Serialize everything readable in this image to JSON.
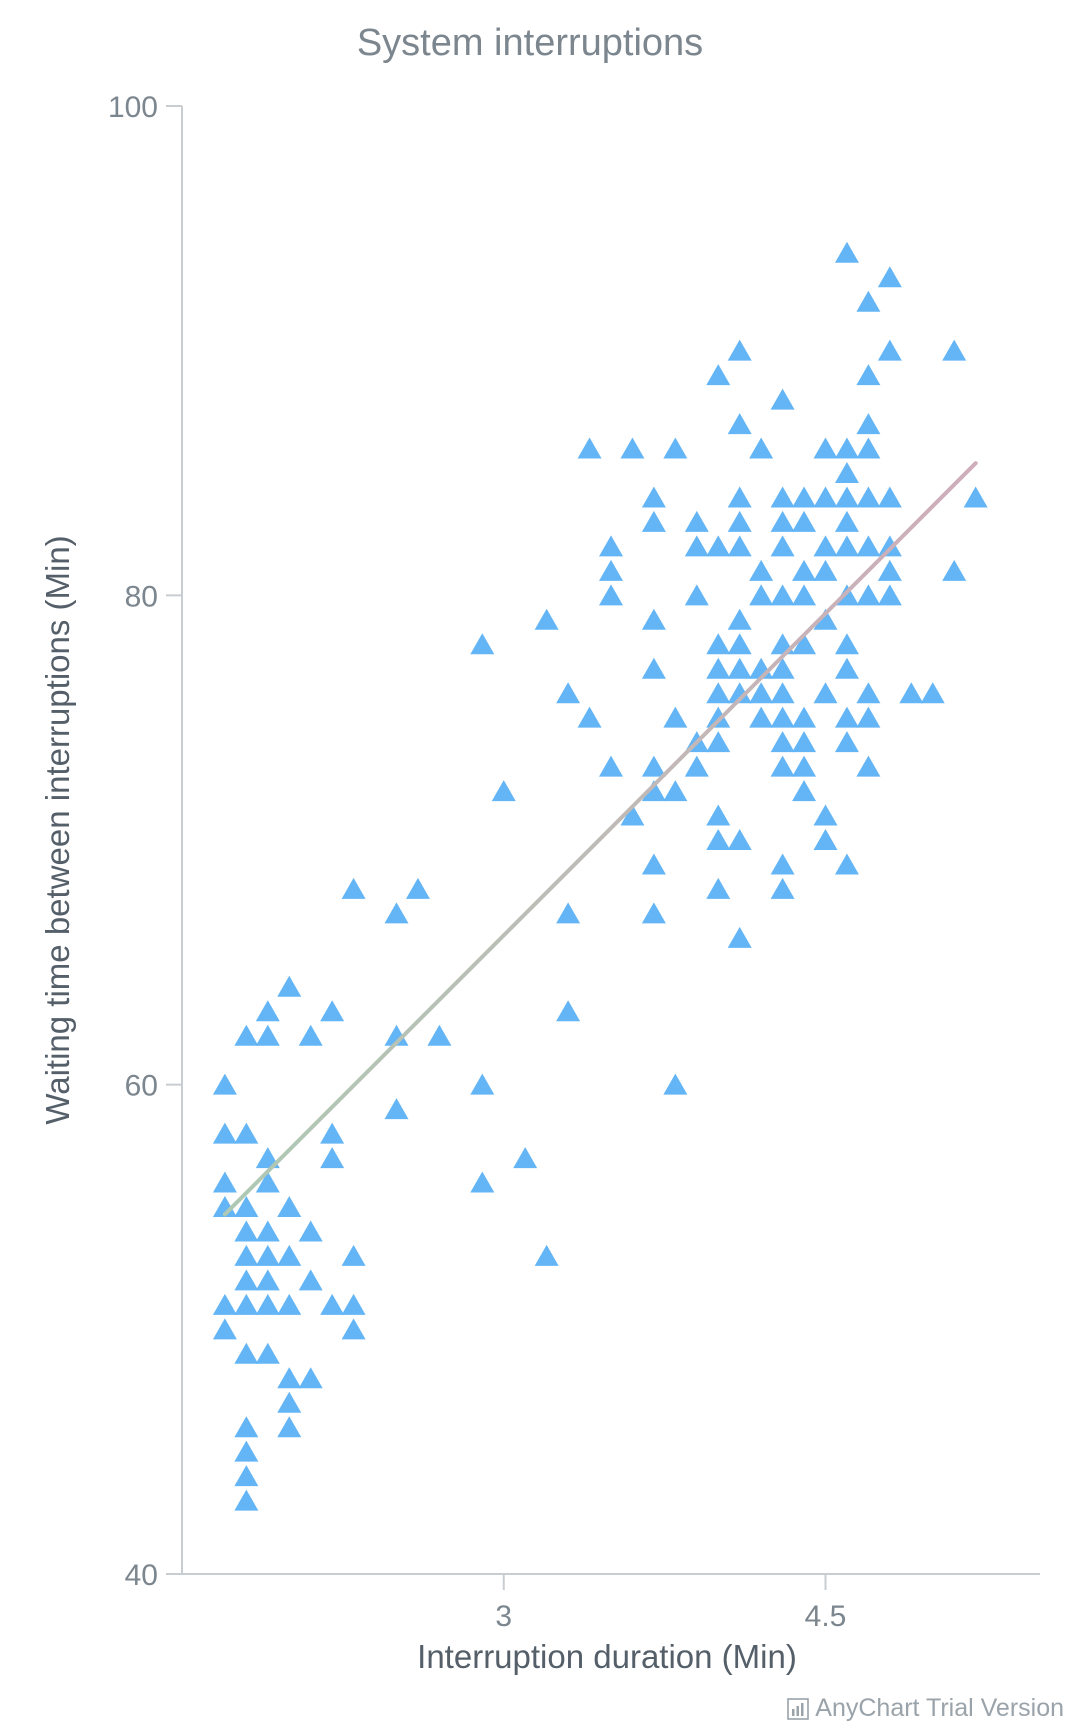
{
  "chart_data": {
    "type": "scatter",
    "title": "System interruptions",
    "xlabel": "Interruption duration (Min)",
    "ylabel": "Waiting time between interruptions (Min)",
    "xlim": [
      1.5,
      5.5
    ],
    "ylim": [
      40,
      100
    ],
    "x_ticks": [
      {
        "value": 3,
        "label": "3"
      },
      {
        "value": 4.5,
        "label": "4.5"
      }
    ],
    "y_ticks": [
      {
        "value": 40,
        "label": "40"
      },
      {
        "value": 60,
        "label": "60"
      },
      {
        "value": 80,
        "label": "80"
      },
      {
        "value": 100,
        "label": "100"
      }
    ],
    "series": [
      {
        "marker": "triangle-up",
        "color": "#64b5f6",
        "points": [
          [
            1.7,
            60
          ],
          [
            1.7,
            58
          ],
          [
            1.7,
            56
          ],
          [
            1.7,
            55
          ],
          [
            1.7,
            51
          ],
          [
            1.7,
            50
          ],
          [
            1.8,
            62
          ],
          [
            1.8,
            58
          ],
          [
            1.8,
            55
          ],
          [
            1.8,
            54
          ],
          [
            1.8,
            53
          ],
          [
            1.8,
            52
          ],
          [
            1.8,
            51
          ],
          [
            1.8,
            49
          ],
          [
            1.8,
            46
          ],
          [
            1.8,
            45
          ],
          [
            1.8,
            44
          ],
          [
            1.8,
            43
          ],
          [
            1.9,
            62
          ],
          [
            1.9,
            63
          ],
          [
            1.9,
            57
          ],
          [
            1.9,
            56
          ],
          [
            1.9,
            54
          ],
          [
            1.9,
            53
          ],
          [
            1.9,
            52
          ],
          [
            1.9,
            51
          ],
          [
            1.9,
            49
          ],
          [
            2.0,
            64
          ],
          [
            2.0,
            55
          ],
          [
            2.0,
            53
          ],
          [
            2.0,
            51
          ],
          [
            2.0,
            48
          ],
          [
            2.0,
            47
          ],
          [
            2.0,
            46
          ],
          [
            2.1,
            62
          ],
          [
            2.1,
            54
          ],
          [
            2.1,
            52
          ],
          [
            2.1,
            48
          ],
          [
            2.2,
            63
          ],
          [
            2.2,
            58
          ],
          [
            2.2,
            57
          ],
          [
            2.2,
            51
          ],
          [
            2.3,
            68
          ],
          [
            2.3,
            53
          ],
          [
            2.3,
            51
          ],
          [
            2.3,
            50
          ],
          [
            2.5,
            67
          ],
          [
            2.5,
            62
          ],
          [
            2.5,
            59
          ],
          [
            2.6,
            68
          ],
          [
            2.7,
            62
          ],
          [
            2.9,
            78
          ],
          [
            2.9,
            60
          ],
          [
            2.9,
            56
          ],
          [
            3.0,
            72
          ],
          [
            3.1,
            57
          ],
          [
            3.2,
            79
          ],
          [
            3.2,
            53
          ],
          [
            3.3,
            76
          ],
          [
            3.3,
            67
          ],
          [
            3.3,
            63
          ],
          [
            3.4,
            86
          ],
          [
            3.4,
            75
          ],
          [
            3.5,
            82
          ],
          [
            3.5,
            81
          ],
          [
            3.5,
            80
          ],
          [
            3.5,
            73
          ],
          [
            3.6,
            86
          ],
          [
            3.6,
            71
          ],
          [
            3.7,
            84
          ],
          [
            3.7,
            83
          ],
          [
            3.7,
            79
          ],
          [
            3.7,
            77
          ],
          [
            3.7,
            73
          ],
          [
            3.7,
            72
          ],
          [
            3.7,
            69
          ],
          [
            3.7,
            67
          ],
          [
            3.8,
            86
          ],
          [
            3.8,
            75
          ],
          [
            3.8,
            72
          ],
          [
            3.8,
            60
          ],
          [
            3.9,
            83
          ],
          [
            3.9,
            82
          ],
          [
            3.9,
            80
          ],
          [
            3.9,
            74
          ],
          [
            3.9,
            73
          ],
          [
            4.0,
            89
          ],
          [
            4.0,
            82
          ],
          [
            4.0,
            78
          ],
          [
            4.0,
            77
          ],
          [
            4.0,
            76
          ],
          [
            4.0,
            75
          ],
          [
            4.0,
            74
          ],
          [
            4.0,
            71
          ],
          [
            4.0,
            70
          ],
          [
            4.0,
            68
          ],
          [
            4.1,
            90
          ],
          [
            4.1,
            87
          ],
          [
            4.1,
            84
          ],
          [
            4.1,
            83
          ],
          [
            4.1,
            82
          ],
          [
            4.1,
            79
          ],
          [
            4.1,
            78
          ],
          [
            4.1,
            77
          ],
          [
            4.1,
            76
          ],
          [
            4.1,
            70
          ],
          [
            4.1,
            66
          ],
          [
            4.2,
            86
          ],
          [
            4.2,
            81
          ],
          [
            4.2,
            80
          ],
          [
            4.2,
            77
          ],
          [
            4.2,
            76
          ],
          [
            4.2,
            75
          ],
          [
            4.3,
            88
          ],
          [
            4.3,
            84
          ],
          [
            4.3,
            83
          ],
          [
            4.3,
            82
          ],
          [
            4.3,
            80
          ],
          [
            4.3,
            78
          ],
          [
            4.3,
            77
          ],
          [
            4.3,
            76
          ],
          [
            4.3,
            75
          ],
          [
            4.3,
            74
          ],
          [
            4.3,
            73
          ],
          [
            4.3,
            69
          ],
          [
            4.3,
            68
          ],
          [
            4.4,
            84
          ],
          [
            4.4,
            83
          ],
          [
            4.4,
            81
          ],
          [
            4.4,
            80
          ],
          [
            4.4,
            78
          ],
          [
            4.4,
            75
          ],
          [
            4.4,
            74
          ],
          [
            4.4,
            73
          ],
          [
            4.4,
            72
          ],
          [
            4.5,
            86
          ],
          [
            4.5,
            84
          ],
          [
            4.5,
            82
          ],
          [
            4.5,
            81
          ],
          [
            4.5,
            79
          ],
          [
            4.5,
            76
          ],
          [
            4.5,
            71
          ],
          [
            4.5,
            70
          ],
          [
            4.6,
            94
          ],
          [
            4.6,
            86
          ],
          [
            4.6,
            85
          ],
          [
            4.6,
            84
          ],
          [
            4.6,
            83
          ],
          [
            4.6,
            82
          ],
          [
            4.6,
            80
          ],
          [
            4.6,
            78
          ],
          [
            4.6,
            77
          ],
          [
            4.6,
            75
          ],
          [
            4.6,
            74
          ],
          [
            4.6,
            69
          ],
          [
            4.7,
            92
          ],
          [
            4.7,
            89
          ],
          [
            4.7,
            87
          ],
          [
            4.7,
            86
          ],
          [
            4.7,
            84
          ],
          [
            4.7,
            82
          ],
          [
            4.7,
            80
          ],
          [
            4.7,
            76
          ],
          [
            4.7,
            75
          ],
          [
            4.7,
            73
          ],
          [
            4.8,
            93
          ],
          [
            4.8,
            90
          ],
          [
            4.8,
            84
          ],
          [
            4.8,
            82
          ],
          [
            4.8,
            81
          ],
          [
            4.8,
            80
          ],
          [
            4.9,
            76
          ],
          [
            5.0,
            76
          ],
          [
            5.1,
            90
          ],
          [
            5.1,
            81
          ],
          [
            5.2,
            84
          ]
        ]
      }
    ],
    "trendline": {
      "x": [
        1.7,
        5.2
      ],
      "y": [
        54.7,
        85.4
      ],
      "color_start": "#aec9b4",
      "color_end": "#cfadba"
    }
  },
  "credits": {
    "text": "AnyChart Trial Version"
  }
}
